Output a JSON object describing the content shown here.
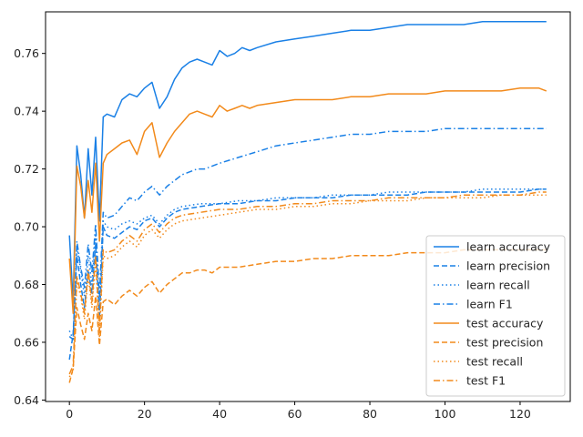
{
  "chart_data": {
    "type": "line",
    "title": "",
    "xlabel": "",
    "ylabel": "",
    "xlim": [
      -6.35,
      133.35
    ],
    "ylim": [
      0.6395,
      0.7744
    ],
    "xticks": [
      0,
      20,
      40,
      60,
      80,
      100,
      120
    ],
    "xtick_labels": [
      "0",
      "20",
      "40",
      "60",
      "80",
      "100",
      "120"
    ],
    "yticks": [
      0.64,
      0.66,
      0.68,
      0.7,
      0.72,
      0.74,
      0.76
    ],
    "ytick_labels": [
      "0.64",
      "0.66",
      "0.68",
      "0.70",
      "0.72",
      "0.74",
      "0.76"
    ],
    "grid": false,
    "legend_position": "lower-right",
    "colors": {
      "learn": "#1f77b4",
      "test": "#ff7f0e",
      "learn_display": "#1a80e6",
      "test_display": "#f28a1b"
    },
    "series": [
      {
        "name": "learn accuracy",
        "group": "learn",
        "dash": "solid",
        "x": [
          0,
          1,
          2,
          3,
          4,
          5,
          6,
          7,
          8,
          9,
          10,
          12,
          14,
          16,
          18,
          20,
          22,
          24,
          26,
          28,
          30,
          32,
          34,
          36,
          38,
          40,
          42,
          44,
          46,
          48,
          50,
          55,
          60,
          65,
          70,
          75,
          80,
          85,
          90,
          95,
          100,
          105,
          110,
          115,
          120,
          125,
          127
        ],
        "y": [
          0.697,
          0.674,
          0.728,
          0.718,
          0.703,
          0.727,
          0.711,
          0.731,
          0.702,
          0.738,
          0.739,
          0.738,
          0.744,
          0.746,
          0.745,
          0.748,
          0.75,
          0.741,
          0.745,
          0.751,
          0.755,
          0.757,
          0.758,
          0.757,
          0.756,
          0.761,
          0.759,
          0.76,
          0.762,
          0.761,
          0.762,
          0.764,
          0.765,
          0.766,
          0.767,
          0.768,
          0.768,
          0.769,
          0.77,
          0.77,
          0.77,
          0.77,
          0.771,
          0.771,
          0.771,
          0.771,
          0.771
        ]
      },
      {
        "name": "learn precision",
        "group": "learn",
        "dash": "dashed",
        "x": [
          0,
          1,
          2,
          3,
          4,
          5,
          6,
          7,
          8,
          9,
          10,
          12,
          14,
          16,
          18,
          20,
          22,
          24,
          26,
          28,
          30,
          35,
          40,
          45,
          50,
          55,
          60,
          65,
          70,
          75,
          80,
          85,
          90,
          95,
          100,
          105,
          110,
          115,
          120,
          125,
          127
        ],
        "y": [
          0.654,
          0.663,
          0.69,
          0.68,
          0.672,
          0.685,
          0.677,
          0.694,
          0.668,
          0.7,
          0.697,
          0.696,
          0.698,
          0.7,
          0.699,
          0.702,
          0.703,
          0.7,
          0.703,
          0.705,
          0.706,
          0.707,
          0.708,
          0.708,
          0.709,
          0.709,
          0.71,
          0.71,
          0.71,
          0.711,
          0.711,
          0.711,
          0.711,
          0.712,
          0.712,
          0.712,
          0.712,
          0.712,
          0.712,
          0.713,
          0.713
        ]
      },
      {
        "name": "learn recall",
        "group": "learn",
        "dash": "dotted",
        "x": [
          0,
          1,
          2,
          3,
          4,
          5,
          6,
          7,
          8,
          9,
          10,
          12,
          14,
          16,
          18,
          20,
          22,
          24,
          26,
          28,
          30,
          35,
          40,
          45,
          50,
          55,
          60,
          65,
          70,
          75,
          80,
          85,
          90,
          95,
          100,
          105,
          110,
          115,
          120,
          125,
          127
        ],
        "y": [
          0.664,
          0.661,
          0.693,
          0.685,
          0.676,
          0.69,
          0.68,
          0.697,
          0.671,
          0.702,
          0.7,
          0.699,
          0.701,
          0.702,
          0.701,
          0.703,
          0.704,
          0.701,
          0.704,
          0.706,
          0.707,
          0.708,
          0.708,
          0.709,
          0.709,
          0.71,
          0.71,
          0.71,
          0.711,
          0.711,
          0.711,
          0.712,
          0.712,
          0.712,
          0.712,
          0.712,
          0.713,
          0.713,
          0.713,
          0.713,
          0.713
        ]
      },
      {
        "name": "learn F1",
        "group": "learn",
        "dash": "dashdot",
        "x": [
          0,
          1,
          2,
          3,
          4,
          5,
          6,
          7,
          8,
          9,
          10,
          12,
          14,
          16,
          18,
          20,
          22,
          24,
          26,
          28,
          30,
          32,
          34,
          36,
          38,
          40,
          45,
          50,
          55,
          60,
          65,
          70,
          75,
          80,
          85,
          90,
          95,
          100,
          105,
          110,
          115,
          120,
          125,
          127
        ],
        "y": [
          0.662,
          0.661,
          0.695,
          0.686,
          0.679,
          0.694,
          0.684,
          0.701,
          0.676,
          0.705,
          0.703,
          0.704,
          0.707,
          0.71,
          0.709,
          0.712,
          0.714,
          0.711,
          0.714,
          0.716,
          0.718,
          0.719,
          0.72,
          0.72,
          0.721,
          0.722,
          0.724,
          0.726,
          0.728,
          0.729,
          0.73,
          0.731,
          0.732,
          0.732,
          0.733,
          0.733,
          0.733,
          0.734,
          0.734,
          0.734,
          0.734,
          0.734,
          0.734,
          0.734
        ]
      },
      {
        "name": "test accuracy",
        "group": "test",
        "dash": "solid",
        "x": [
          0,
          1,
          2,
          3,
          4,
          5,
          6,
          7,
          8,
          9,
          10,
          12,
          14,
          16,
          18,
          20,
          22,
          24,
          26,
          28,
          30,
          32,
          34,
          36,
          38,
          40,
          42,
          44,
          46,
          48,
          50,
          55,
          60,
          65,
          70,
          75,
          80,
          85,
          90,
          95,
          100,
          105,
          110,
          115,
          120,
          125,
          127
        ],
        "y": [
          0.689,
          0.67,
          0.721,
          0.714,
          0.703,
          0.716,
          0.705,
          0.722,
          0.695,
          0.722,
          0.725,
          0.727,
          0.729,
          0.73,
          0.725,
          0.733,
          0.736,
          0.724,
          0.729,
          0.733,
          0.736,
          0.739,
          0.74,
          0.739,
          0.738,
          0.742,
          0.74,
          0.741,
          0.742,
          0.741,
          0.742,
          0.743,
          0.744,
          0.744,
          0.744,
          0.745,
          0.745,
          0.746,
          0.746,
          0.746,
          0.747,
          0.747,
          0.747,
          0.747,
          0.748,
          0.748,
          0.747
        ]
      },
      {
        "name": "test precision",
        "group": "test",
        "dash": "dashed",
        "x": [
          0,
          1,
          2,
          3,
          4,
          5,
          6,
          7,
          8,
          9,
          10,
          12,
          14,
          16,
          18,
          20,
          22,
          24,
          26,
          28,
          30,
          32,
          34,
          36,
          38,
          40,
          45,
          50,
          55,
          60,
          65,
          70,
          75,
          80,
          85,
          90,
          95,
          100,
          105,
          110,
          115,
          120,
          125,
          127
        ],
        "y": [
          0.646,
          0.651,
          0.672,
          0.666,
          0.661,
          0.67,
          0.664,
          0.676,
          0.659,
          0.674,
          0.675,
          0.673,
          0.676,
          0.678,
          0.676,
          0.679,
          0.681,
          0.677,
          0.68,
          0.682,
          0.684,
          0.684,
          0.685,
          0.685,
          0.684,
          0.686,
          0.686,
          0.687,
          0.688,
          0.688,
          0.689,
          0.689,
          0.69,
          0.69,
          0.69,
          0.691,
          0.691,
          0.691,
          0.692,
          0.692,
          0.692,
          0.692,
          0.692,
          0.692
        ]
      },
      {
        "name": "test recall",
        "group": "test",
        "dash": "dotted",
        "x": [
          0,
          1,
          2,
          3,
          4,
          5,
          6,
          7,
          8,
          9,
          10,
          12,
          14,
          16,
          18,
          20,
          22,
          24,
          26,
          28,
          30,
          35,
          40,
          45,
          50,
          55,
          60,
          65,
          70,
          75,
          80,
          85,
          90,
          95,
          100,
          105,
          110,
          115,
          120,
          125,
          127
        ],
        "y": [
          0.648,
          0.65,
          0.681,
          0.676,
          0.668,
          0.683,
          0.672,
          0.688,
          0.662,
          0.69,
          0.689,
          0.69,
          0.693,
          0.695,
          0.693,
          0.697,
          0.699,
          0.696,
          0.699,
          0.701,
          0.702,
          0.703,
          0.704,
          0.705,
          0.706,
          0.706,
          0.707,
          0.707,
          0.708,
          0.708,
          0.709,
          0.709,
          0.709,
          0.71,
          0.71,
          0.71,
          0.71,
          0.711,
          0.711,
          0.711,
          0.711
        ]
      },
      {
        "name": "test F1",
        "group": "test",
        "dash": "dashdot",
        "x": [
          0,
          1,
          2,
          3,
          4,
          5,
          6,
          7,
          8,
          9,
          10,
          12,
          14,
          16,
          18,
          20,
          22,
          24,
          26,
          28,
          30,
          35,
          40,
          45,
          50,
          55,
          60,
          65,
          70,
          75,
          80,
          85,
          90,
          95,
          100,
          105,
          110,
          115,
          120,
          125,
          127
        ],
        "y": [
          0.649,
          0.652,
          0.683,
          0.677,
          0.67,
          0.685,
          0.674,
          0.69,
          0.664,
          0.692,
          0.691,
          0.692,
          0.695,
          0.697,
          0.695,
          0.699,
          0.701,
          0.698,
          0.701,
          0.703,
          0.704,
          0.705,
          0.706,
          0.706,
          0.707,
          0.707,
          0.708,
          0.708,
          0.709,
          0.709,
          0.709,
          0.71,
          0.71,
          0.71,
          0.71,
          0.711,
          0.711,
          0.711,
          0.711,
          0.712,
          0.712
        ]
      }
    ]
  }
}
